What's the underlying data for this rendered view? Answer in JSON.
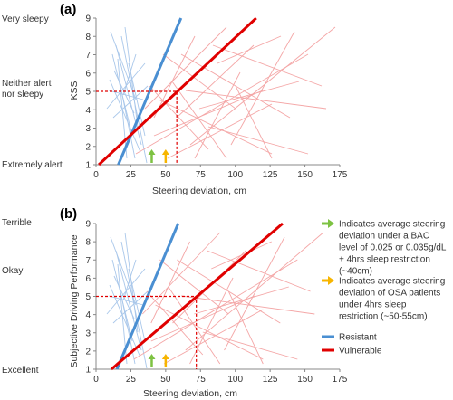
{
  "chart_data": [
    {
      "type": "line",
      "panel_label": "(a)",
      "ylabel": "KSS",
      "xlabel": "Steering deviation, cm",
      "xlim": [
        0,
        175
      ],
      "ylim": [
        1,
        9
      ],
      "x_ticks": [
        0,
        25,
        50,
        75,
        100,
        125,
        150,
        175
      ],
      "y_ticks": [
        1,
        2,
        3,
        4,
        5,
        6,
        7,
        8,
        9
      ],
      "side_labels": [
        {
          "text": "Very sleepy",
          "y": 9
        },
        {
          "text": "Neither alert nor sleepy",
          "y": 5
        },
        {
          "text": "Extremely alert",
          "y": 1
        }
      ],
      "series": [
        {
          "name": "Resistant",
          "color": "#4a8fd2",
          "points": [
            [
              16,
              1
            ],
            [
              61,
              9
            ]
          ]
        },
        {
          "name": "Vulnerable",
          "color": "#e00000",
          "points": [
            [
              2,
              1
            ],
            [
              115,
              9
            ]
          ]
        }
      ],
      "reference": {
        "x": 58,
        "y": 5
      },
      "arrows": [
        {
          "x": 40,
          "color": "#7dc242"
        },
        {
          "x": 50,
          "color": "#f7b500"
        }
      ]
    },
    {
      "type": "line",
      "panel_label": "(b)",
      "ylabel": "Subjective Driving Performance",
      "xlabel": "Steering deviation, cm",
      "xlim": [
        0,
        175
      ],
      "ylim": [
        1,
        9
      ],
      "x_ticks": [
        0,
        25,
        50,
        75,
        100,
        125,
        150,
        175
      ],
      "y_ticks": [
        1,
        2,
        3,
        4,
        5,
        6,
        7,
        8,
        9
      ],
      "side_labels": [
        {
          "text": "Terrible",
          "y": 9
        },
        {
          "text": "Okay",
          "y": 5
        },
        {
          "text": "Excellent",
          "y": 1
        }
      ],
      "series": [
        {
          "name": "Resistant",
          "color": "#4a8fd2",
          "points": [
            [
              15,
              1
            ],
            [
              59,
              9
            ]
          ]
        },
        {
          "name": "Vulnerable",
          "color": "#e00000",
          "points": [
            [
              11,
              1
            ],
            [
              134,
              9
            ]
          ]
        }
      ],
      "reference": {
        "x": 72,
        "y": 5
      },
      "arrows": [
        {
          "x": 40,
          "color": "#7dc242"
        },
        {
          "x": 50,
          "color": "#f7b500"
        }
      ]
    }
  ],
  "legend": [
    {
      "kind": "arrow",
      "color": "#7dc242",
      "text": "Indicates average steering deviation under a BAC level of 0.025 or 0.035g/dL + 4hrs sleep restriction (~40cm)"
    },
    {
      "kind": "arrow",
      "color": "#f7b500",
      "text": "Indicates average steering deviation of OSA patients under 4hrs sleep restriction (~50-55cm)"
    },
    {
      "kind": "line",
      "color": "#4a8fd2",
      "text": "Resistant"
    },
    {
      "kind": "line",
      "color": "#e00000",
      "text": "Vulnerable"
    }
  ]
}
